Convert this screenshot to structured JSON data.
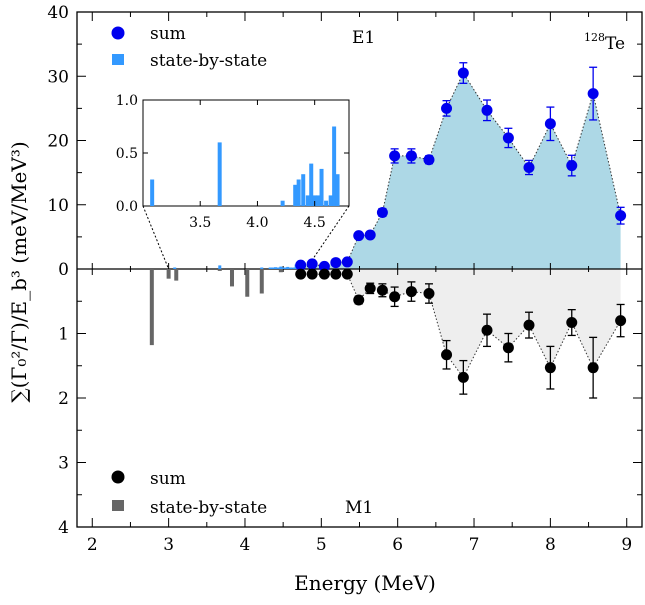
{
  "chart_data": {
    "type": "scatter",
    "xlabel": "Energy (MeV)",
    "ylabel": "∑(Γ₀²/Γ)/E_b³ (meV/MeV³)",
    "xlim": [
      1.8,
      9.2
    ],
    "xticks": [
      2,
      3,
      4,
      5,
      6,
      7,
      8,
      9
    ],
    "top_panel": {
      "label": "E1",
      "nucleus": "128Te",
      "ylim": [
        0,
        40
      ],
      "yticks": [
        0,
        10,
        20,
        30,
        40
      ],
      "series": [
        {
          "name": "sum",
          "type": "scatter",
          "color": "#0000ee",
          "x": [
            4.73,
            4.88,
            5.04,
            5.19,
            5.34,
            5.49,
            5.64,
            5.8,
            5.96,
            6.18,
            6.41,
            6.64,
            6.86,
            7.17,
            7.45,
            7.72,
            8.0,
            8.28,
            8.56,
            8.92
          ],
          "y": [
            0.6,
            0.8,
            0.4,
            1.0,
            1.1,
            5.2,
            5.3,
            8.8,
            17.6,
            17.6,
            17.0,
            25.0,
            30.5,
            24.7,
            20.4,
            15.8,
            22.6,
            16.1,
            27.3,
            8.3
          ],
          "yerr": [
            0.2,
            0.2,
            0.2,
            0.2,
            0.3,
            0.3,
            0.3,
            0.6,
            1.1,
            1.1,
            0.6,
            1.2,
            1.6,
            1.6,
            1.5,
            1.1,
            2.6,
            1.6,
            4.1,
            1.3
          ]
        },
        {
          "name": "state-by-state",
          "type": "bar",
          "color": "#3399ff",
          "x": [
            3.08,
            3.67,
            4.22,
            4.33,
            4.36,
            4.4,
            4.44,
            4.47,
            4.5,
            4.53,
            4.56,
            4.6,
            4.64,
            4.67,
            4.7
          ],
          "y": [
            0.25,
            0.6,
            0.05,
            0.2,
            0.25,
            0.3,
            0.1,
            0.4,
            0.1,
            0.1,
            0.35,
            0.05,
            0.1,
            0.75,
            0.3
          ]
        }
      ],
      "inset": {
        "xlim": [
          3.0,
          4.8
        ],
        "xticks": [
          3.5,
          4.0,
          4.5
        ],
        "ylim": [
          0,
          1.0
        ],
        "yticks": [
          0.0,
          0.5,
          1.0
        ]
      }
    },
    "bottom_panel": {
      "label": "M1",
      "ylim": [
        0,
        4
      ],
      "yticks": [
        1,
        2,
        3,
        4
      ],
      "inverted": true,
      "series": [
        {
          "name": "sum",
          "type": "scatter",
          "color": "#000000",
          "x": [
            4.73,
            4.88,
            5.04,
            5.19,
            5.34,
            5.49,
            5.64,
            5.8,
            5.96,
            6.18,
            6.41,
            6.64,
            6.86,
            7.17,
            7.45,
            7.72,
            8.0,
            8.28,
            8.56,
            8.92
          ],
          "y": [
            0.08,
            0.08,
            0.08,
            0.08,
            0.08,
            0.48,
            0.3,
            0.33,
            0.43,
            0.35,
            0.38,
            1.33,
            1.68,
            0.95,
            1.22,
            0.87,
            1.53,
            0.83,
            1.53,
            0.8
          ],
          "yerr": [
            0.03,
            0.03,
            0.03,
            0.03,
            0.03,
            0.06,
            0.08,
            0.1,
            0.15,
            0.15,
            0.15,
            0.22,
            0.26,
            0.25,
            0.22,
            0.2,
            0.33,
            0.2,
            0.47,
            0.25
          ]
        },
        {
          "name": "state-by-state",
          "type": "bar",
          "color": "#666666",
          "x": [
            2.78,
            3.0,
            3.1,
            3.67,
            3.83,
            4.03,
            4.22,
            4.47
          ],
          "y": [
            1.18,
            0.15,
            0.18,
            0.03,
            0.27,
            0.43,
            0.38,
            0.05
          ]
        }
      ]
    }
  }
}
